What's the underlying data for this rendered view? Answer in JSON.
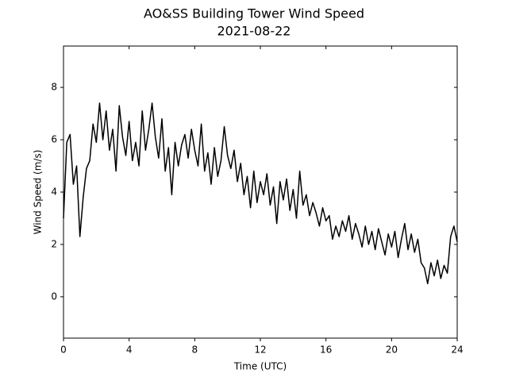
{
  "chart_data": {
    "type": "line",
    "title": "AO&SS Building Tower Wind Speed",
    "subtitle": "2021-08-22",
    "x_label": "Time (UTC)",
    "y_label": "Wind Speed (m/s)",
    "xlim": [
      0,
      24
    ],
    "xticks": [
      0,
      4,
      8,
      12,
      16,
      20,
      24
    ],
    "ylim": [
      -1.58,
      9.58
    ],
    "yticks": [
      0,
      2,
      4,
      6,
      8
    ],
    "grid": false,
    "series": [
      {
        "color": "#000000",
        "x": [
          0.0,
          0.2,
          0.4,
          0.6,
          0.8,
          1.0,
          1.2,
          1.4,
          1.6,
          1.8,
          2.0,
          2.2,
          2.4,
          2.6,
          2.8,
          3.0,
          3.2,
          3.4,
          3.6,
          3.8,
          4.0,
          4.2,
          4.4,
          4.6,
          4.8,
          5.0,
          5.2,
          5.4,
          5.6,
          5.8,
          6.0,
          6.2,
          6.4,
          6.6,
          6.8,
          7.0,
          7.2,
          7.4,
          7.6,
          7.8,
          8.0,
          8.2,
          8.4,
          8.6,
          8.8,
          9.0,
          9.2,
          9.4,
          9.6,
          9.8,
          10.0,
          10.2,
          10.4,
          10.6,
          10.8,
          11.0,
          11.2,
          11.4,
          11.6,
          11.8,
          12.0,
          12.2,
          12.4,
          12.6,
          12.8,
          13.0,
          13.2,
          13.4,
          13.6,
          13.8,
          14.0,
          14.2,
          14.4,
          14.6,
          14.8,
          15.0,
          15.2,
          15.4,
          15.6,
          15.8,
          16.0,
          16.2,
          16.4,
          16.6,
          16.8,
          17.0,
          17.2,
          17.4,
          17.6,
          17.8,
          18.0,
          18.2,
          18.4,
          18.6,
          18.8,
          19.0,
          19.2,
          19.4,
          19.6,
          19.8,
          20.0,
          20.2,
          20.4,
          20.6,
          20.8,
          21.0,
          21.2,
          21.4,
          21.6,
          21.8,
          22.0,
          22.2,
          22.4,
          22.6,
          22.8,
          23.0,
          23.2,
          23.4,
          23.6,
          23.8,
          24.0
        ],
        "values": [
          3.0,
          5.9,
          6.2,
          4.3,
          5.0,
          2.3,
          3.8,
          4.9,
          5.2,
          6.6,
          5.9,
          7.4,
          6.0,
          7.1,
          5.6,
          6.4,
          4.8,
          7.3,
          6.1,
          5.4,
          6.7,
          5.2,
          5.9,
          5.0,
          7.1,
          5.6,
          6.4,
          7.4,
          6.1,
          5.3,
          6.8,
          4.8,
          5.7,
          3.9,
          5.9,
          5.0,
          5.8,
          6.2,
          5.3,
          6.4,
          5.6,
          5.0,
          6.6,
          4.8,
          5.5,
          4.3,
          5.7,
          4.6,
          5.2,
          6.5,
          5.4,
          4.9,
          5.6,
          4.4,
          5.1,
          3.9,
          4.6,
          3.4,
          4.8,
          3.6,
          4.4,
          3.9,
          4.7,
          3.5,
          4.2,
          2.8,
          4.4,
          3.7,
          4.5,
          3.3,
          4.1,
          3.0,
          4.8,
          3.5,
          3.9,
          3.1,
          3.6,
          3.2,
          2.7,
          3.4,
          2.9,
          3.1,
          2.2,
          2.7,
          2.3,
          2.9,
          2.5,
          3.1,
          2.2,
          2.8,
          2.4,
          1.9,
          2.7,
          2.0,
          2.5,
          1.8,
          2.6,
          2.1,
          1.6,
          2.4,
          1.9,
          2.5,
          1.5,
          2.2,
          2.8,
          1.8,
          2.4,
          1.7,
          2.2,
          1.3,
          1.1,
          0.5,
          1.3,
          0.8,
          1.4,
          0.7,
          1.2,
          0.9,
          2.3,
          2.7,
          2.1
        ]
      }
    ]
  }
}
